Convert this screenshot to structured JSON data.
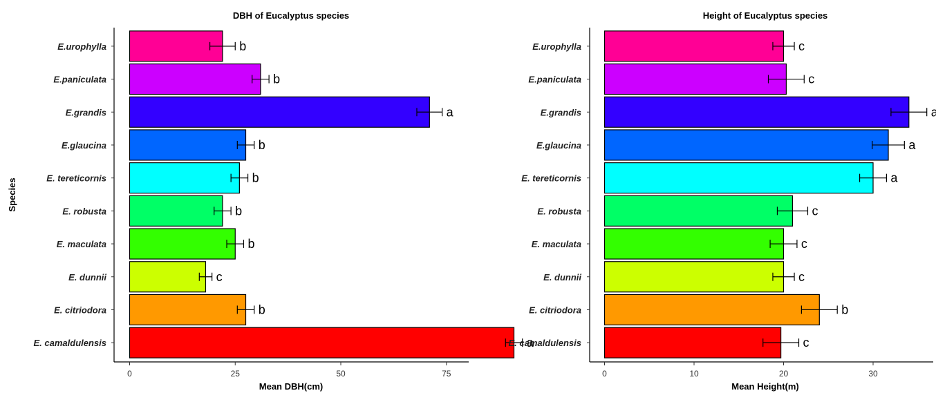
{
  "chart_data": [
    {
      "type": "bar",
      "orientation": "horizontal",
      "title": "DBH of Eucalyptus species",
      "xlabel": "Mean DBH(cm)",
      "ylabel": "Species",
      "xlim": [
        0,
        97
      ],
      "xticks": [
        0,
        25,
        50,
        75
      ],
      "grid": false,
      "legend": "none",
      "categories": [
        "E.urophylla",
        "E.paniculata",
        "E.grandis",
        "E.glaucina",
        "E. tereticornis",
        "E. robusta",
        "E. maculata",
        "E. dunnii",
        "E. citriodora",
        "E. camaldulensis"
      ],
      "values": [
        22,
        31,
        71,
        27.5,
        26,
        22,
        25,
        18,
        27.5,
        91
      ],
      "errors": [
        3,
        2,
        3,
        2,
        2,
        2,
        2,
        1.5,
        2,
        2
      ],
      "labels": [
        "b",
        "b",
        "a",
        "b",
        "b",
        "b",
        "b",
        "c",
        "b",
        "a"
      ],
      "colors": [
        "#ff0095",
        "#cc00ff",
        "#3300ff",
        "#0066ff",
        "#00ffff",
        "#00ff66",
        "#33ff00",
        "#ccff00",
        "#ff9900",
        "#ff0000"
      ]
    },
    {
      "type": "bar",
      "orientation": "horizontal",
      "title": "Height of Eucalyptus species",
      "xlabel": "Mean Height(m)",
      "ylabel": "",
      "xlim": [
        0,
        36.5
      ],
      "xticks": [
        0,
        10,
        20,
        30
      ],
      "grid": false,
      "legend": "none",
      "categories": [
        "E.urophylla",
        "E.paniculata",
        "E.grandis",
        "E.glaucina",
        "E. tereticornis",
        "E. robusta",
        "E. maculata",
        "E. dunnii",
        "E. citriodora",
        "E. camaldulensis"
      ],
      "values": [
        20,
        20.3,
        34,
        31.7,
        30,
        21,
        20,
        20,
        24,
        19.7
      ],
      "errors": [
        1.2,
        2,
        2,
        1.8,
        1.5,
        1.7,
        1.5,
        1.2,
        2,
        2
      ],
      "labels": [
        "c",
        "c",
        "a",
        "a",
        "a",
        "c",
        "c",
        "c",
        "b",
        "c"
      ],
      "colors": [
        "#ff0095",
        "#cc00ff",
        "#3300ff",
        "#0066ff",
        "#00ffff",
        "#00ff66",
        "#33ff00",
        "#ccff00",
        "#ff9900",
        "#ff0000"
      ]
    }
  ]
}
